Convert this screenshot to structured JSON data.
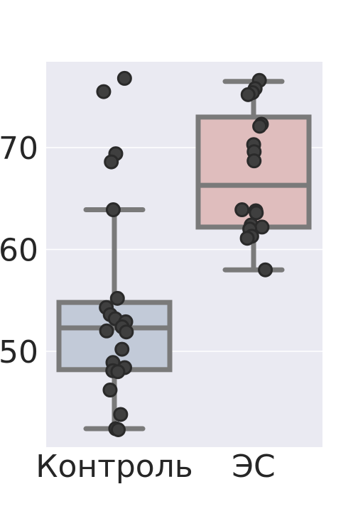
{
  "chart_data": {
    "type": "box",
    "overlay": "strip",
    "title": "",
    "xlabel": "",
    "ylabel": "",
    "categories": [
      "Контроль",
      "ЭС"
    ],
    "ylim": [
      40.5,
      78.5
    ],
    "yticks": [
      50,
      60,
      70
    ],
    "grid": true,
    "colors": {
      "plot_bg": "#EAEAF2",
      "grid": "#FFFFFF",
      "box_line": "#7A7A7A",
      "point_fill": "#3F3F3F",
      "point_edge": "#2A2A2A",
      "boxes": [
        "#C2CAD8",
        "#DFBDBD"
      ]
    },
    "series": [
      {
        "category": "Контроль",
        "box": {
          "whisker_low": 42.4,
          "q1": 48.2,
          "median": 52.3,
          "q3": 54.8,
          "whisker_high": 63.9
        },
        "points": [
          76.8,
          75.5,
          69.4,
          68.6,
          63.9,
          55.2,
          54.3,
          53.6,
          53.2,
          52.9,
          52.4,
          52.0,
          51.9,
          50.2,
          48.9,
          48.4,
          48.1,
          48.0,
          46.2,
          43.8,
          42.4,
          42.3
        ]
      },
      {
        "category": "ЭС",
        "box": {
          "whisker_low": 58.0,
          "q1": 62.2,
          "median": 66.3,
          "q3": 73.0,
          "whisker_high": 76.5
        },
        "points": [
          76.6,
          75.8,
          75.4,
          75.2,
          72.3,
          72.1,
          70.3,
          69.6,
          68.7,
          63.9,
          63.8,
          63.6,
          62.4,
          62.2,
          62.0,
          61.3,
          61.1,
          58.0
        ]
      }
    ]
  }
}
